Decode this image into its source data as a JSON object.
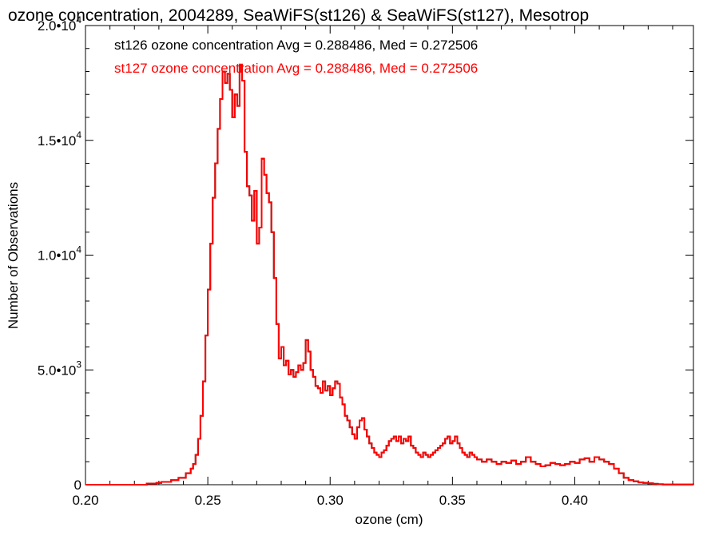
{
  "chart_data": {
    "type": "line",
    "title": "ozone concentration, 2004289, SeaWiFS(st126) & SeaWiFS(st127), Mesotrop",
    "xlabel": "ozone (cm)",
    "ylabel": "Number of Observations",
    "xlim": [
      0.2,
      0.4485
    ],
    "ylim": [
      0,
      20000
    ],
    "xticks": [
      0.2,
      0.25,
      0.3,
      0.35,
      0.4
    ],
    "xtick_labels": [
      "0.20",
      "0.25",
      "0.30",
      "0.35",
      "0.40"
    ],
    "yticks": [
      {
        "value": 0,
        "mant": "0",
        "exp": ""
      },
      {
        "value": 5000,
        "mant": "5.0•10",
        "exp": "3"
      },
      {
        "value": 10000,
        "mant": "1.0•10",
        "exp": "4"
      },
      {
        "value": 15000,
        "mant": "1.5•10",
        "exp": "4"
      },
      {
        "value": 20000,
        "mant": "2.0•10",
        "exp": "4"
      }
    ],
    "legend_position": "top-left",
    "grid": false,
    "series": [
      {
        "name": "st126 ozone concentration Avg = 0.288486, Med = 0.272506",
        "color": "#000000",
        "x": [
          0.2,
          0.225,
          0.229,
          0.231,
          0.235,
          0.238,
          0.241,
          0.243,
          0.244,
          0.245,
          0.246,
          0.247,
          0.248,
          0.249,
          0.25,
          0.251,
          0.252,
          0.253,
          0.254,
          0.255,
          0.256,
          0.257,
          0.258,
          0.259,
          0.26,
          0.261,
          0.262,
          0.263,
          0.264,
          0.265,
          0.266,
          0.267,
          0.268,
          0.269,
          0.27,
          0.271,
          0.272,
          0.273,
          0.274,
          0.275,
          0.276,
          0.277,
          0.278,
          0.279,
          0.28,
          0.281,
          0.282,
          0.283,
          0.284,
          0.285,
          0.286,
          0.287,
          0.288,
          0.289,
          0.29,
          0.291,
          0.292,
          0.293,
          0.294,
          0.295,
          0.296,
          0.297,
          0.298,
          0.299,
          0.3,
          0.301,
          0.302,
          0.303,
          0.304,
          0.305,
          0.306,
          0.307,
          0.308,
          0.309,
          0.31,
          0.311,
          0.312,
          0.313,
          0.314,
          0.315,
          0.316,
          0.317,
          0.318,
          0.319,
          0.32,
          0.321,
          0.322,
          0.323,
          0.324,
          0.325,
          0.326,
          0.327,
          0.328,
          0.329,
          0.33,
          0.331,
          0.332,
          0.333,
          0.334,
          0.335,
          0.336,
          0.337,
          0.338,
          0.339,
          0.34,
          0.341,
          0.342,
          0.343,
          0.344,
          0.345,
          0.346,
          0.347,
          0.348,
          0.349,
          0.35,
          0.351,
          0.352,
          0.353,
          0.354,
          0.355,
          0.356,
          0.357,
          0.358,
          0.359,
          0.36,
          0.362,
          0.364,
          0.366,
          0.368,
          0.37,
          0.372,
          0.374,
          0.376,
          0.378,
          0.38,
          0.382,
          0.384,
          0.386,
          0.388,
          0.39,
          0.392,
          0.394,
          0.396,
          0.398,
          0.4,
          0.402,
          0.404,
          0.406,
          0.408,
          0.41,
          0.412,
          0.414,
          0.416,
          0.418,
          0.42,
          0.422,
          0.424,
          0.426,
          0.428,
          0.43,
          0.432,
          0.434,
          0.436,
          0.4485
        ],
        "y": [
          0,
          50,
          80,
          120,
          200,
          300,
          500,
          700,
          900,
          1300,
          2000,
          3000,
          4500,
          6500,
          8500,
          10500,
          12500,
          14000,
          15500,
          16800,
          18000,
          17500,
          17900,
          17200,
          16000,
          17000,
          16500,
          18300,
          17600,
          14500,
          13000,
          12600,
          11500,
          12800,
          10500,
          11200,
          14200,
          13500,
          12700,
          12300,
          11000,
          9000,
          7000,
          5500,
          6000,
          5200,
          5400,
          4800,
          5000,
          4700,
          4900,
          5200,
          5000,
          5300,
          6300,
          5800,
          5000,
          4700,
          4300,
          4200,
          4000,
          4500,
          4100,
          4300,
          3900,
          4200,
          4500,
          4400,
          3800,
          3500,
          3000,
          2800,
          2500,
          2200,
          2000,
          2500,
          2800,
          2900,
          2400,
          2100,
          1800,
          1600,
          1400,
          1300,
          1200,
          1400,
          1500,
          1700,
          1900,
          2000,
          2100,
          1900,
          2100,
          1800,
          2000,
          1900,
          2100,
          1700,
          1600,
          1400,
          1300,
          1200,
          1400,
          1300,
          1200,
          1300,
          1400,
          1500,
          1600,
          1700,
          1800,
          2000,
          2100,
          1800,
          1900,
          2100,
          1800,
          1600,
          1400,
          1300,
          1200,
          1400,
          1300,
          1200,
          1100,
          1000,
          1100,
          1000,
          900,
          1000,
          950,
          1050,
          900,
          1000,
          1200,
          1000,
          900,
          800,
          850,
          950,
          900,
          850,
          900,
          1000,
          950,
          1100,
          1150,
          1000,
          1200,
          1100,
          1000,
          900,
          700,
          500,
          300,
          200,
          150,
          100,
          80,
          60,
          40,
          20,
          10,
          0
        ]
      },
      {
        "name": "st127 ozone concentration Avg = 0.288486, Med = 0.272506",
        "color": "#ff0000",
        "same_as": "st126"
      }
    ]
  }
}
